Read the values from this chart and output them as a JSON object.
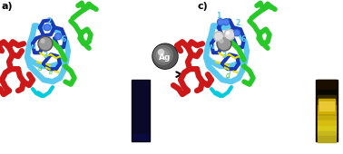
{
  "title_a": "a)",
  "title_c": "c)",
  "ag_label": "Ag",
  "background": "#ffffff",
  "mol_colors": {
    "blue_light": "#5bc8f0",
    "blue_light2": "#60d0f8",
    "blue_dark": "#1a3ab5",
    "blue_node": "#3060d0",
    "green": "#28c828",
    "green_dark": "#20a820",
    "red": "#cc1818",
    "yellow": "#e8e000",
    "gray_pt": "#808080",
    "gray_pt2": "#999999",
    "white_ag": "#e0e0e0",
    "blue_ag": "#4090e0",
    "cyan_ax": "#00ccdd"
  },
  "fig_width": 3.78,
  "fig_height": 1.7,
  "dpi": 100
}
